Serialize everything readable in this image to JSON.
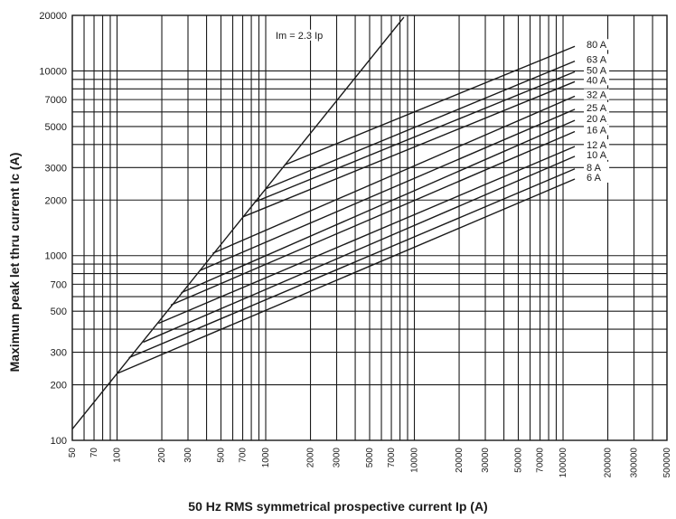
{
  "chart_data": {
    "type": "line",
    "xlabel": "50 Hz RMS symmetrical prospective current Ip (A)",
    "ylabel": "Maximum peak let thru current Ic (A)",
    "xscale": "log",
    "yscale": "log",
    "xlim": [
      50,
      500000
    ],
    "ylim": [
      100,
      20000
    ],
    "grid": true,
    "x_tick_labels": [
      "50",
      "70",
      "100",
      "200",
      "300",
      "500",
      "700",
      "1000",
      "2000",
      "3000",
      "5000",
      "7000",
      "10000",
      "20000",
      "30000",
      "50000",
      "70000",
      "100000",
      "200000",
      "300000",
      "500000"
    ],
    "y_tick_labels": [
      "100",
      "200",
      "300",
      "500",
      "700",
      "1000",
      "2000",
      "3000",
      "5000",
      "7000",
      "10000",
      "20000"
    ],
    "annotation": "Im = 2.3 Ip",
    "limit_line": {
      "name": "Im = 2.3 Ip",
      "x": [
        50,
        8500
      ],
      "y": [
        115,
        19550
      ]
    },
    "series": [
      {
        "name": "80 A",
        "x": [
          1340,
          120000
        ],
        "y": [
          3100,
          13600
        ]
      },
      {
        "name": "63 A",
        "x": [
          1000,
          120000
        ],
        "y": [
          2300,
          11300
        ]
      },
      {
        "name": "50 A",
        "x": [
          840,
          120000
        ],
        "y": [
          1950,
          9900
        ]
      },
      {
        "name": "40 A",
        "x": [
          700,
          120000
        ],
        "y": [
          1620,
          8750
        ]
      },
      {
        "name": "32 A",
        "x": [
          440,
          120000
        ],
        "y": [
          1030,
          7300
        ]
      },
      {
        "name": "25 A",
        "x": [
          360,
          120000
        ],
        "y": [
          830,
          6200
        ]
      },
      {
        "name": "20 A",
        "x": [
          270,
          120000
        ],
        "y": [
          630,
          5400
        ]
      },
      {
        "name": "16 A",
        "x": [
          230,
          120000
        ],
        "y": [
          540,
          4700
        ]
      },
      {
        "name": "12 A",
        "x": [
          190,
          120000
        ],
        "y": [
          430,
          3900
        ]
      },
      {
        "name": "10 A",
        "x": [
          150,
          120000
        ],
        "y": [
          340,
          3450
        ]
      },
      {
        "name": "8 A",
        "x": [
          120,
          120000
        ],
        "y": [
          280,
          2950
        ]
      },
      {
        "name": "6 A",
        "x": [
          100,
          120000
        ],
        "y": [
          230,
          2600
        ]
      }
    ],
    "colors": {
      "lines": "#1a1a1a",
      "grid": "#1a1a1a",
      "background": "#ffffff"
    }
  }
}
